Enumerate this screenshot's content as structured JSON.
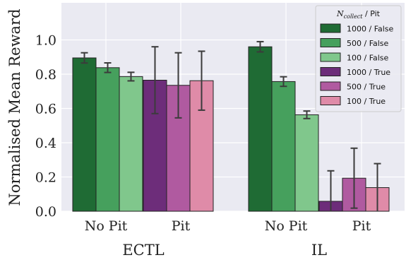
{
  "chart_data": {
    "type": "bar",
    "ylabel": "Normalised Mean Reward",
    "ylim": [
      0.0,
      1.1
    ],
    "yticks": [
      "0.0",
      "0.2",
      "0.4",
      "0.6",
      "0.8",
      "1.0"
    ],
    "grid": true,
    "legend_position": "top-right",
    "legend_title": "N_collect / Pit",
    "legend_title_sub": "collect",
    "legend_title_rest": " / Pit",
    "groups": [
      {
        "name": "ECTL",
        "subgroups": [
          "No Pit",
          "Pit"
        ]
      },
      {
        "name": "IL",
        "subgroups": [
          "No Pit",
          "Pit"
        ]
      }
    ],
    "series": [
      {
        "name": "1000 / False",
        "color": "#1f6b34",
        "values": [
          0.895,
          null,
          0.96,
          null
        ],
        "errors": [
          0.03,
          null,
          0.03,
          null
        ]
      },
      {
        "name": "500 / False",
        "color": "#46a05d",
        "values": [
          0.838,
          null,
          0.757,
          null
        ],
        "errors": [
          0.028,
          null,
          0.028,
          null
        ]
      },
      {
        "name": "100 / False",
        "color": "#80c78c",
        "values": [
          0.786,
          null,
          0.563,
          null
        ],
        "errors": [
          0.025,
          null,
          0.022,
          null
        ]
      },
      {
        "name": "1000 / True",
        "color": "#6d2d7a",
        "values": [
          null,
          0.765,
          null,
          0.058
        ],
        "errors": [
          null,
          0.195,
          null,
          0.178
        ]
      },
      {
        "name": "500 / True",
        "color": "#b05aa0",
        "values": [
          null,
          0.735,
          null,
          0.193
        ],
        "errors": [
          null,
          0.19,
          null,
          0.175
        ]
      },
      {
        "name": "100 / True",
        "color": "#df8ba8",
        "values": [
          null,
          0.762,
          null,
          0.138
        ],
        "errors": [
          null,
          0.172,
          null,
          0.14
        ]
      }
    ]
  }
}
